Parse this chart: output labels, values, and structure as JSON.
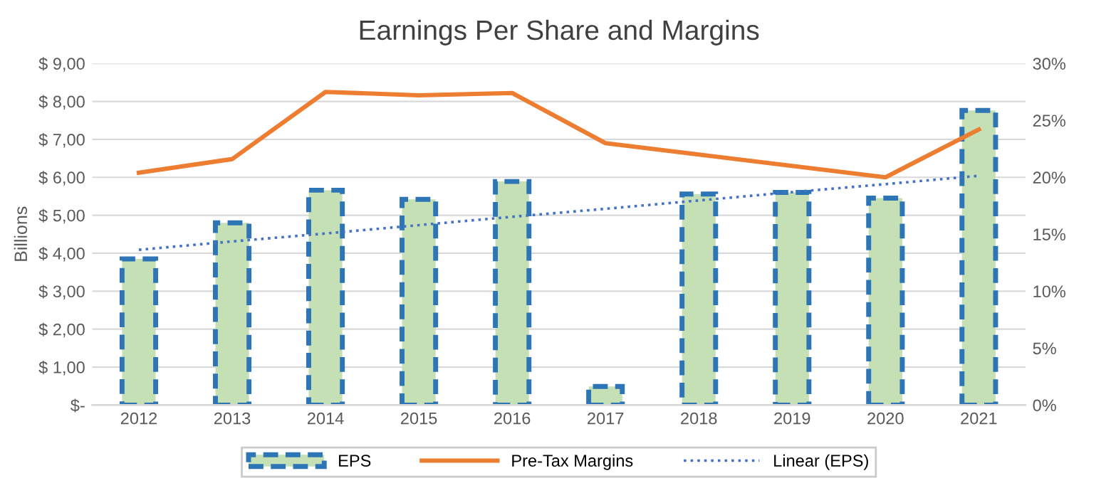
{
  "chart_data": {
    "type": "bar",
    "title": "Earnings Per Share and Margins",
    "ylabel": "Billions",
    "categories": [
      "2012",
      "2013",
      "2014",
      "2015",
      "2016",
      "2017",
      "2018",
      "2019",
      "2020",
      "2021"
    ],
    "series": [
      {
        "name": "EPS",
        "color": "#c5e0b4",
        "line_style": "dashed",
        "values": [
          3.85,
          4.8,
          5.66,
          5.42,
          5.89,
          0.49,
          5.56,
          5.6,
          5.45,
          7.76
        ]
      },
      {
        "name": "Pre-Tax Margins",
        "type": "line",
        "axis": "y2",
        "color": "#ed7d31",
        "line_style": "solid",
        "values": [
          20.4,
          21.6,
          27.5,
          27.2,
          27.4,
          23.0,
          22.0,
          21.0,
          20.0,
          24.2
        ]
      },
      {
        "name": "Linear (EPS)",
        "type": "line",
        "color": "#4472c4",
        "line_style": "dotted",
        "values": [
          4.09,
          4.31,
          4.52,
          4.74,
          4.96,
          5.17,
          5.39,
          5.61,
          5.82,
          6.04
        ]
      }
    ],
    "ylim": [
      0,
      9
    ],
    "yticks": [
      {
        "value": 0,
        "label": "$-"
      },
      {
        "value": 1,
        "label": "$ 1,00"
      },
      {
        "value": 2,
        "label": "$ 2,00"
      },
      {
        "value": 3,
        "label": "$ 3,00"
      },
      {
        "value": 4,
        "label": "$ 4,00"
      },
      {
        "value": 5,
        "label": "$ 5,00"
      },
      {
        "value": 6,
        "label": "$ 6,00"
      },
      {
        "value": 7,
        "label": "$ 7,00"
      },
      {
        "value": 8,
        "label": "$ 8,00"
      },
      {
        "value": 9,
        "label": "$ 9,00"
      }
    ],
    "y2lim": [
      0,
      30
    ],
    "y2ticks": [
      {
        "value": 0,
        "label": "0%"
      },
      {
        "value": 5,
        "label": "5%"
      },
      {
        "value": 10,
        "label": "10%"
      },
      {
        "value": 15,
        "label": "15%"
      },
      {
        "value": 20,
        "label": "20%"
      },
      {
        "value": 25,
        "label": "25%"
      },
      {
        "value": 30,
        "label": "30%"
      }
    ],
    "grid": "y",
    "legend": "bottom",
    "marker": "none"
  }
}
